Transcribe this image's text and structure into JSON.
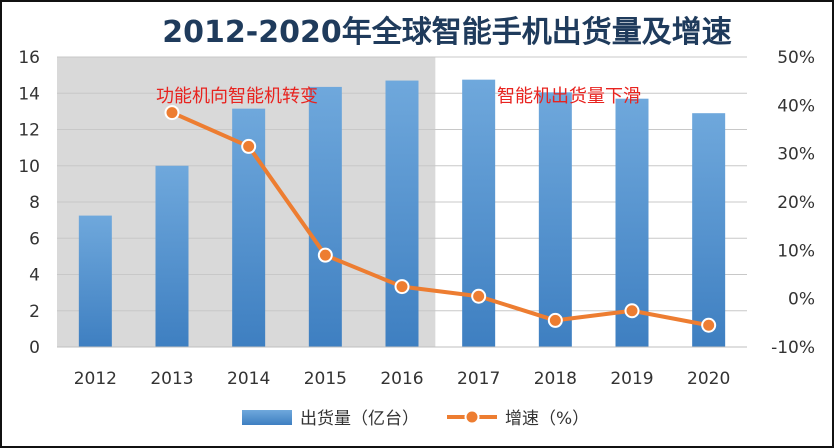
{
  "chart_data": {
    "type": "bar",
    "title": "2012-2020年全球智能手机出货量及增速",
    "categories": [
      "2012",
      "2013",
      "2014",
      "2015",
      "2016",
      "2017",
      "2018",
      "2019",
      "2020"
    ],
    "series": [
      {
        "name": "出货量（亿台）",
        "type": "bar",
        "axis": "left",
        "color": "#5B9BD5",
        "values": [
          7.25,
          10.0,
          13.15,
          14.35,
          14.7,
          14.75,
          14.05,
          13.7,
          12.9
        ]
      },
      {
        "name": "增速（%）",
        "type": "line",
        "axis": "right",
        "color": "#ED7D31",
        "values": [
          null,
          38.5,
          31.5,
          9.0,
          2.5,
          0.5,
          -4.5,
          -2.5,
          -5.5
        ]
      }
    ],
    "y_left": {
      "min": 0,
      "max": 16,
      "ticks": [
        0,
        2,
        4,
        6,
        8,
        10,
        12,
        14,
        16
      ]
    },
    "y_right": {
      "min": -10,
      "max": 50,
      "ticks": [
        "-10%",
        "0%",
        "10%",
        "20%",
        "30%",
        "40%",
        "50%"
      ]
    },
    "annotations": [
      {
        "text": "功能机向智能机转变",
        "color": "#E8231F",
        "span": [
          "2012",
          "2016"
        ]
      },
      {
        "text": "智能机出货量下滑",
        "color": "#E8231F",
        "span": [
          "2017",
          "2020"
        ]
      }
    ],
    "shaded_region": {
      "from": "2012",
      "to": "2016",
      "color": "#D9D9D9"
    },
    "grid": true,
    "legend_position": "bottom"
  }
}
